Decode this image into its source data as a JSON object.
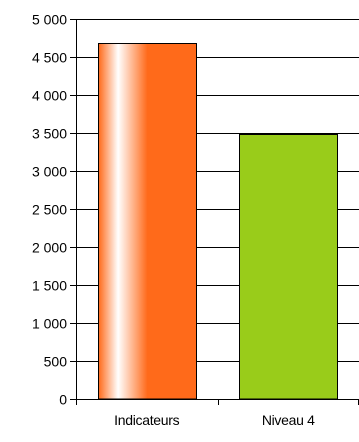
{
  "chart_data": {
    "type": "bar",
    "title": "",
    "xlabel": "",
    "ylabel": "",
    "categories": [
      "Indicateurs",
      "Niveau 4"
    ],
    "values": [
      4680,
      3490
    ],
    "ylim": [
      0,
      5000
    ],
    "yticks": [
      0,
      500,
      1000,
      1500,
      2000,
      2500,
      3000,
      3500,
      4000,
      4500,
      5000
    ],
    "ytick_labels": [
      "0",
      "500",
      "1 000",
      "1 500",
      "2 000",
      "2 500",
      "3 000",
      "3 500",
      "4 000",
      "4 500",
      "5 000"
    ],
    "grid": true,
    "legend": "none",
    "colors": {
      "Indicateurs": "#ff6a1a",
      "Niveau 4": "#99cc1a",
      "grid": "#000000",
      "axis": "#000000"
    },
    "bar_styles": [
      "gradient-white-to-orange",
      "solid"
    ]
  }
}
